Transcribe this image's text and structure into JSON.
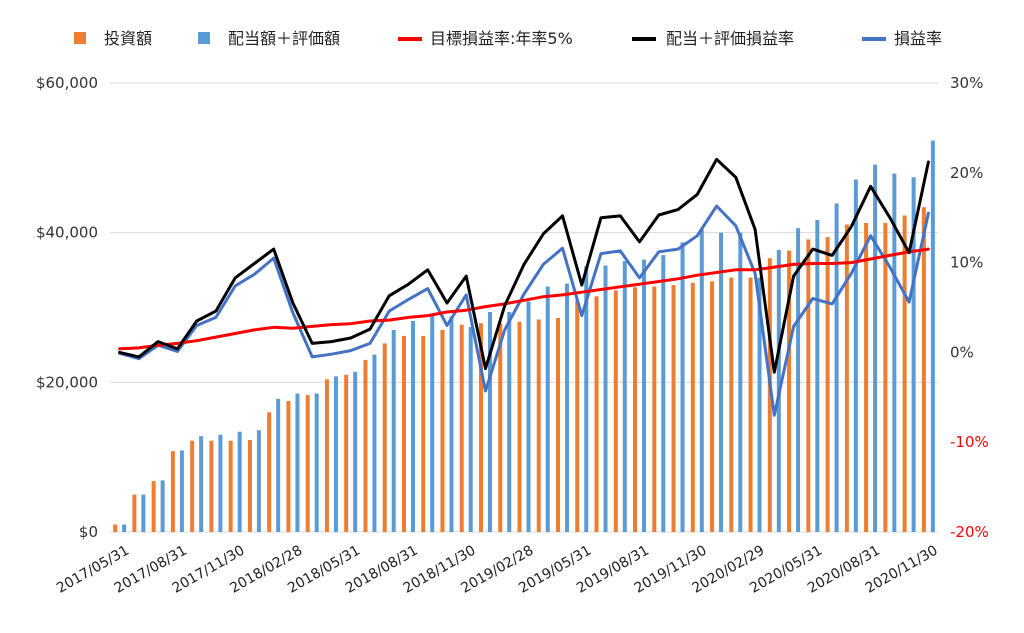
{
  "chart_data": {
    "type": "bar+line",
    "categories": [
      "2017/05/31",
      "2017/06/30",
      "2017/07/31",
      "2017/08/31",
      "2017/09/30",
      "2017/10/31",
      "2017/11/30",
      "2017/12/31",
      "2018/01/31",
      "2018/02/28",
      "2018/03/31",
      "2018/04/30",
      "2018/05/31",
      "2018/06/30",
      "2018/07/31",
      "2018/08/31",
      "2018/09/30",
      "2018/10/31",
      "2018/11/30",
      "2018/12/31",
      "2019/01/31",
      "2019/02/28",
      "2019/03/31",
      "2019/04/30",
      "2019/05/31",
      "2019/06/30",
      "2019/07/31",
      "2019/08/31",
      "2019/09/30",
      "2019/10/31",
      "2019/11/30",
      "2019/12/31",
      "2020/01/31",
      "2020/02/29",
      "2020/03/31",
      "2020/04/30",
      "2020/05/31",
      "2020/06/30",
      "2020/07/31",
      "2020/08/31",
      "2020/09/30",
      "2020/10/31",
      "2020/11/30"
    ],
    "x_tick_labels": [
      "2017/05/31",
      "2017/08/31",
      "2017/11/30",
      "2018/02/28",
      "2018/05/31",
      "2018/08/31",
      "2018/11/30",
      "2019/02/28",
      "2019/05/31",
      "2019/08/31",
      "2019/11/30",
      "2020/02/29",
      "2020/05/31",
      "2020/08/31",
      "2020/11/30"
    ],
    "y_left": {
      "ticks": [
        "$0",
        "$20,000",
        "$40,000",
        "$60,000"
      ],
      "ylim": [
        0,
        60000
      ]
    },
    "y_right": {
      "ticks": [
        "-20%",
        "-10%",
        "0%",
        "10%",
        "20%",
        "30%"
      ],
      "negative_ticks": [
        "-20%",
        "-10%"
      ],
      "negative_color": "#ff0000",
      "ylim": [
        -20,
        30
      ]
    },
    "legend_position": "top",
    "bar_series": [
      {
        "name": "投資額",
        "color": "#ed7d31",
        "values": [
          1000,
          5000,
          6800,
          10800,
          12200,
          12200,
          12200,
          12300,
          16000,
          17500,
          18300,
          20400,
          21000,
          23000,
          25200,
          26200,
          26200,
          27000,
          27700,
          27900,
          27900,
          28100,
          28400,
          28600,
          30900,
          31500,
          32300,
          32700,
          32800,
          33000,
          33300,
          33500,
          34000,
          34000,
          36600,
          37600,
          39100,
          39400,
          41100,
          41300,
          41300,
          42300,
          43400
        ]
      },
      {
        "name": "配当額＋評価額",
        "color": "#5b9bd5",
        "values": [
          1000,
          5000,
          6900,
          10900,
          12800,
          13000,
          13400,
          13600,
          17800,
          18500,
          18500,
          20800,
          21400,
          23700,
          27000,
          28200,
          28900,
          28800,
          27400,
          29400,
          29400,
          30800,
          32800,
          33200,
          35500,
          35600,
          36200,
          36400,
          37000,
          38700,
          40400,
          40000,
          40000,
          34000,
          37700,
          40600,
          41700,
          43900,
          47100,
          49100,
          47900,
          47400,
          52300
        ]
      }
    ],
    "line_series": [
      {
        "name": "目標損益率:年率5%",
        "color": "#ff0000",
        "width": 3,
        "values": [
          0.4,
          0.5,
          0.8,
          1.0,
          1.3,
          1.7,
          2.1,
          2.5,
          2.8,
          2.7,
          2.9,
          3.1,
          3.2,
          3.5,
          3.6,
          3.9,
          4.1,
          4.5,
          4.7,
          5.1,
          5.4,
          5.8,
          6.2,
          6.4,
          6.7,
          7.0,
          7.3,
          7.6,
          7.9,
          8.2,
          8.6,
          8.9,
          9.2,
          9.2,
          9.5,
          9.8,
          9.9,
          9.9,
          10.0,
          10.4,
          10.8,
          11.2,
          11.5
        ]
      },
      {
        "name": "配当＋評価損益率",
        "color": "#000000",
        "width": 3,
        "values": [
          0.0,
          -0.5,
          1.2,
          0.4,
          3.5,
          4.6,
          8.3,
          9.9,
          11.5,
          5.5,
          1.0,
          1.2,
          1.6,
          2.6,
          6.3,
          7.6,
          9.2,
          5.5,
          8.5,
          -1.8,
          5.2,
          9.8,
          13.2,
          15.2,
          7.5,
          15.0,
          15.2,
          12.3,
          15.3,
          15.9,
          17.6,
          21.5,
          19.5,
          13.7,
          -2.2,
          8.5,
          11.5,
          10.8,
          14.0,
          18.5,
          15.0,
          11.1,
          21.2
        ]
      },
      {
        "name": "損益率",
        "color": "#4472c4",
        "width": 3,
        "values": [
          -0.1,
          -0.7,
          0.8,
          0.1,
          3.0,
          3.9,
          7.4,
          8.7,
          10.5,
          4.4,
          -0.5,
          -0.2,
          0.2,
          1.0,
          4.6,
          5.9,
          7.1,
          3.0,
          6.4,
          -4.3,
          2.5,
          6.5,
          9.8,
          11.6,
          4.1,
          11.0,
          11.3,
          8.3,
          11.2,
          11.5,
          13.0,
          16.3,
          14.1,
          8.8,
          -7.0,
          2.9,
          6.0,
          5.4,
          8.8,
          13.0,
          9.5,
          5.6,
          15.5
        ]
      }
    ]
  }
}
